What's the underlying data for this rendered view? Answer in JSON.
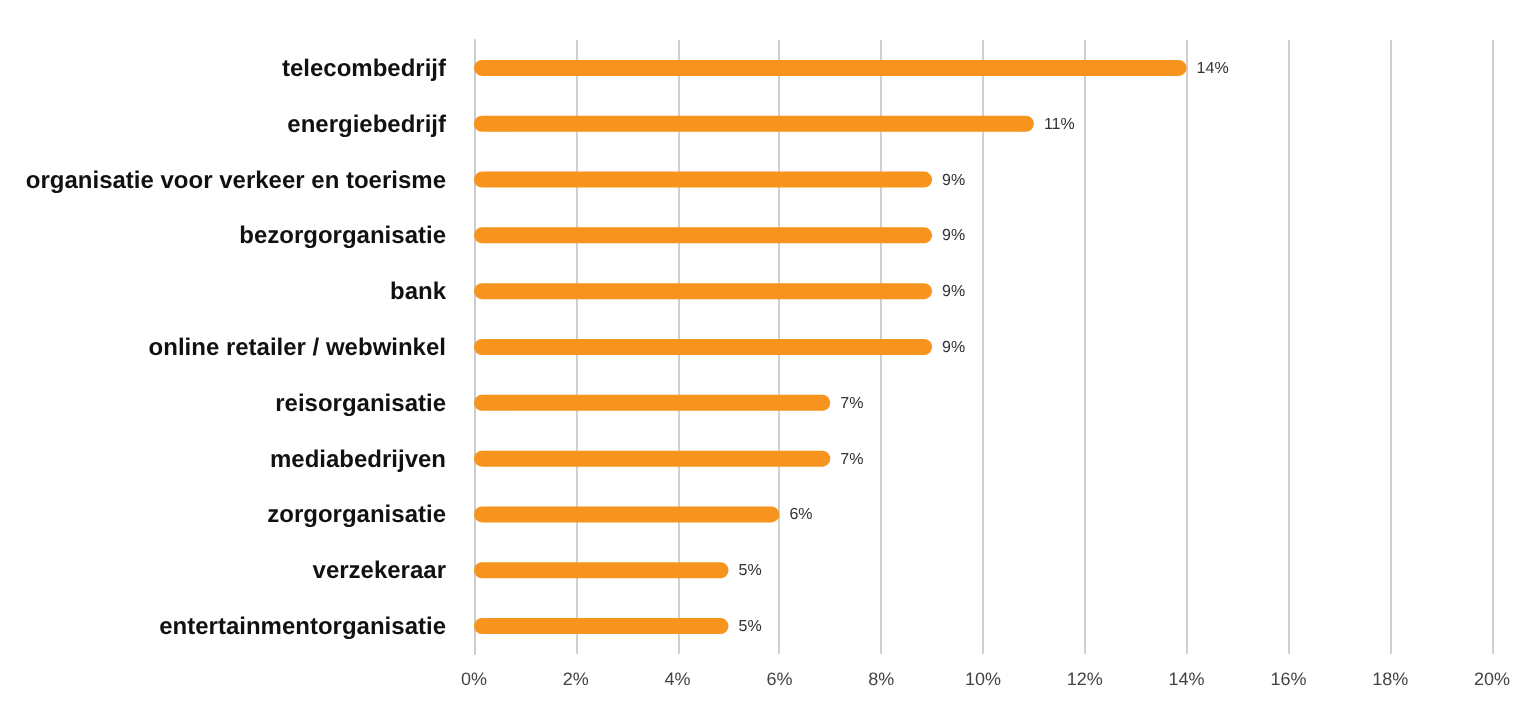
{
  "chart_data": {
    "type": "bar",
    "orientation": "horizontal",
    "categories": [
      "telecombedrijf",
      "energiebedrijf",
      "organisatie voor verkeer en toerisme",
      "bezorgorganisatie",
      "bank",
      "online retailer / webwinkel",
      "reisorganisatie",
      "mediabedrijven",
      "zorgorganisatie",
      "verzekeraar",
      "entertainmentorganisatie"
    ],
    "values": [
      14,
      11,
      9,
      9,
      9,
      9,
      7,
      7,
      6,
      5,
      5
    ],
    "value_labels": [
      "14%",
      "11%",
      "9%",
      "9%",
      "9%",
      "9%",
      "7%",
      "7%",
      "6%",
      "5%",
      "5%"
    ],
    "color": "#f7941d",
    "xlim": [
      0,
      20
    ],
    "xticks": [
      {
        "value": 0,
        "label": "0%"
      },
      {
        "value": 2,
        "label": "2%"
      },
      {
        "value": 4,
        "label": "4%"
      },
      {
        "value": 6,
        "label": "6%"
      },
      {
        "value": 8,
        "label": "8%"
      },
      {
        "value": 10,
        "label": "10%"
      },
      {
        "value": 12,
        "label": "12%"
      },
      {
        "value": 14,
        "label": "14%"
      },
      {
        "value": 16,
        "label": "16%"
      },
      {
        "value": 18,
        "label": "18%"
      },
      {
        "value": 20,
        "label": "20%"
      }
    ],
    "grid": "x"
  }
}
